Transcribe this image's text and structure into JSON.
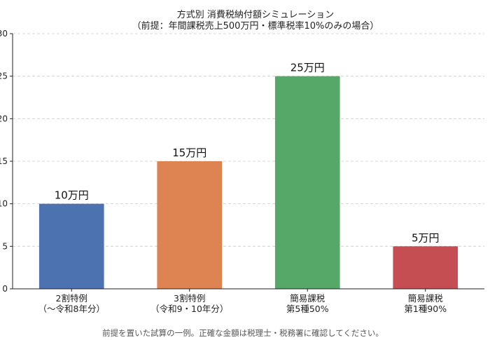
{
  "chart_data": {
    "type": "bar",
    "title": "方式別 消費税納付額シミュレーション",
    "subtitle": "（前提：年間課税売上500万円・標準税率10%のみの場合）",
    "categories": [
      [
        "2割特例",
        "（〜令和8年分）"
      ],
      [
        "3割特例",
        "（令和9・10年分）"
      ],
      [
        "簡易課税",
        "第5種50%"
      ],
      [
        "簡易課税",
        "第1種90%"
      ]
    ],
    "values": [
      10,
      15,
      25,
      5
    ],
    "data_labels": [
      "10万円",
      "15万円",
      "25万円",
      "5万円"
    ],
    "colors": [
      "#4c72b0",
      "#dd8452",
      "#55a868",
      "#c44e52"
    ],
    "ylim": [
      0,
      30
    ],
    "yticks": [
      0,
      5,
      10,
      15,
      20,
      25,
      30
    ],
    "grid": "horizontal-dashed",
    "footnote": "前提を置いた試算の一例。正確な金額は税理士・税務署に確認してください。"
  }
}
